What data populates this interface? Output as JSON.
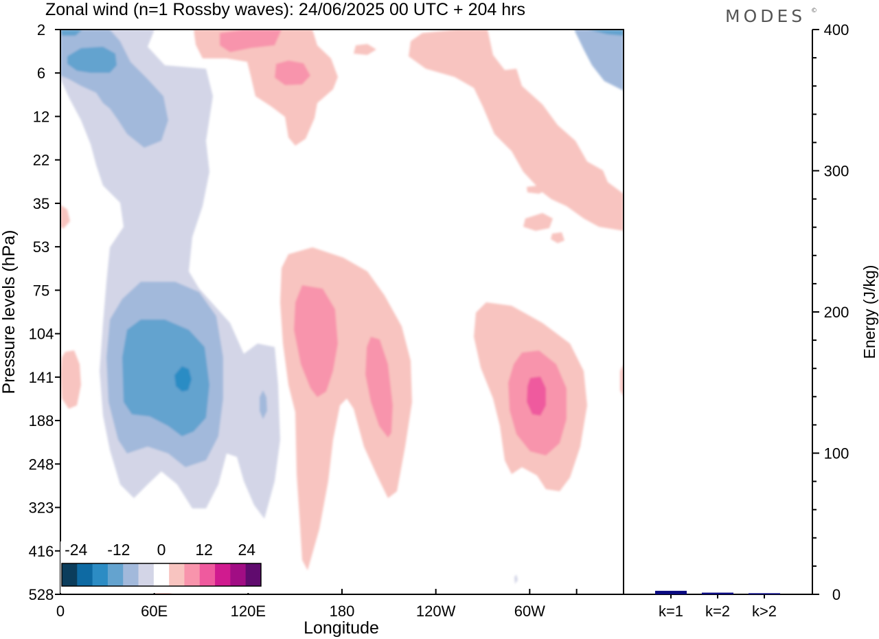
{
  "title": "Zonal wind (n=1 Rossby waves):  24/06/2025  00 UTC  + 204 hrs",
  "logo": "MODES",
  "logo_mark": "©",
  "chart_data": [
    {
      "type": "heatmap",
      "variable": "Zonal wind",
      "xlabel": "Longitude",
      "ylabel": "Pressure levels (hPa)",
      "x_ticks": [
        "0",
        "60E",
        "120E",
        "180",
        "120W",
        "60W"
      ],
      "x_tick_degrees": [
        0,
        60,
        120,
        180,
        240,
        300
      ],
      "xlim": [
        0,
        360
      ],
      "y_ticks": [
        "2",
        "6",
        "12",
        "22",
        "35",
        "53",
        "75",
        "104",
        "141",
        "188",
        "248",
        "323",
        "416",
        "528"
      ],
      "y_axis_reversed": true,
      "colorbar": {
        "tick_labels": [
          "-24",
          "-12",
          "0",
          "12",
          "24"
        ],
        "levels": [
          -28,
          -24,
          -20,
          -16,
          -12,
          -8,
          -4,
          4,
          8,
          12,
          16,
          20,
          24,
          28
        ],
        "colors": [
          "#0b3d5c",
          "#0e6aa3",
          "#2c8cc4",
          "#64a3cf",
          "#a2b9db",
          "#d3d5e7",
          "#ffffff",
          "#f8c4c0",
          "#f894ac",
          "#ef5a9e",
          "#d01b8f",
          "#a10d84",
          "#600b6e"
        ],
        "placement": "bottom-left"
      },
      "features": [
        {
          "sign": "negative",
          "peak": -14,
          "longitude_center": 78,
          "pressure_level": "141"
        },
        {
          "sign": "negative",
          "peak": -12,
          "longitude_center": 15,
          "pressure_level": "6"
        },
        {
          "sign": "positive",
          "peak": 12,
          "longitude_center": 160,
          "pressure_level": "104"
        },
        {
          "sign": "positive",
          "peak": 10,
          "longitude_center": 200,
          "pressure_level": "141"
        },
        {
          "sign": "positive",
          "peak": 14,
          "longitude_center": 304,
          "pressure_level": "141"
        },
        {
          "sign": "positive",
          "peak": 8,
          "longitude_center": 105,
          "pressure_level": "2"
        }
      ]
    },
    {
      "type": "bar",
      "categories": [
        "k=1",
        "k=2",
        "k>2"
      ],
      "values": [
        2.5,
        1.2,
        0.8
      ],
      "ylabel": "Energy (J/kg)",
      "ylim": [
        0,
        400
      ],
      "y_ticks": [
        0,
        100,
        200,
        300,
        400
      ],
      "bar_color": "#0a0a80"
    }
  ]
}
